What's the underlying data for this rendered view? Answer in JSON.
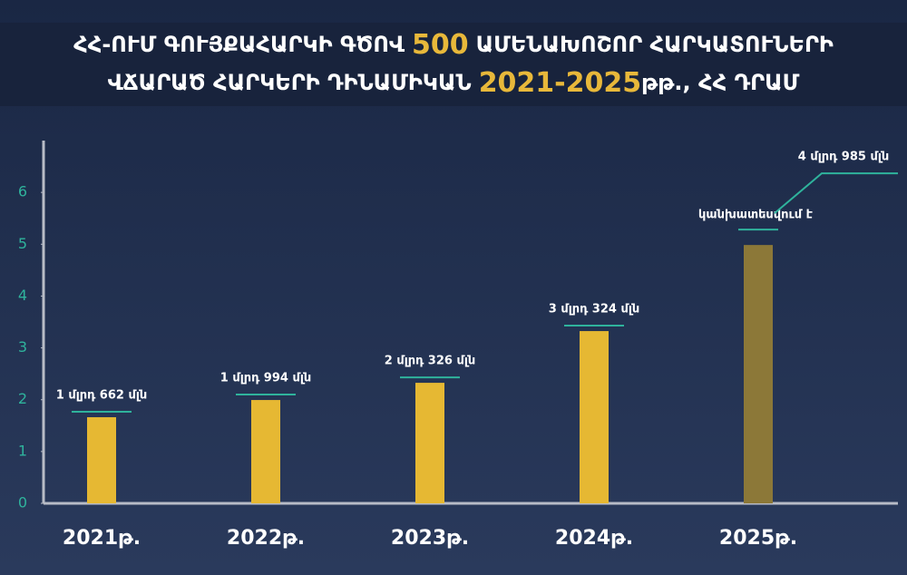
{
  "chart_data": {
    "type": "bar",
    "title_lines": [
      [
        "ՀՀ-ՈՒՄ ԳՈՒՅՔԱՀԱՐԿԻ ԳԾՈՎ",
        "500",
        "ԱՄԵՆԱԽՈՇՈՐ ՀԱՐԿԱՏՈՒՆԵՐԻ"
      ],
      [
        "ՎՃԱՐԱԾ ՀԱՐԿԵՐԻ ԴԻՆԱՄԻԿԱՆ",
        "2021-2025",
        "թթ., ՀՀ ԴՐԱՄ"
      ]
    ],
    "categories": [
      "2021թ.",
      "2022թ.",
      "2023թ.",
      "2024թ.",
      "2025թ."
    ],
    "values": [
      1.662,
      1.994,
      2.326,
      3.324,
      4.985
    ],
    "value_labels": [
      "1 մլրդ 662 մլն",
      "1 մլրդ 994 մլն",
      "2 մլրդ 326 մլն",
      "3 մլրդ 324 մլն",
      "4 մլրդ 985 մլն"
    ],
    "colors": [
      "#e6b833",
      "#e6b833",
      "#e6b833",
      "#e6b833",
      "#8c7838"
    ],
    "annotation": "կանխատեսվում է",
    "ylim": [
      0,
      7
    ],
    "yticks": [
      0,
      1,
      2,
      3,
      4,
      5,
      6
    ]
  }
}
